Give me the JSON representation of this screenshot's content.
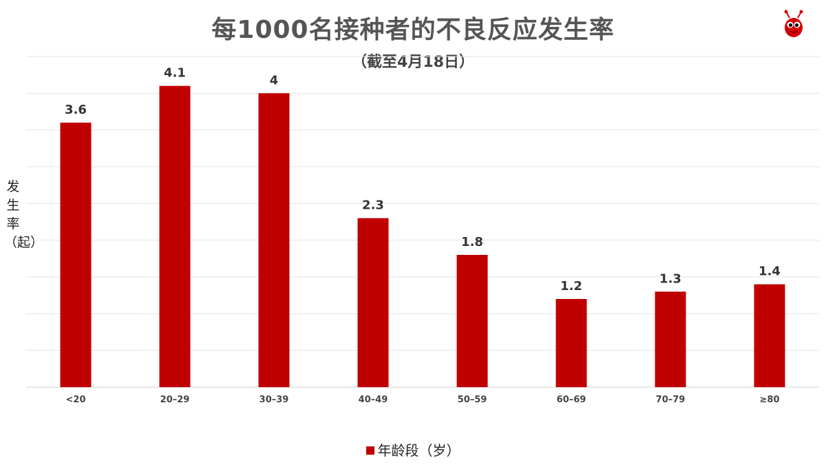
{
  "chart_data": {
    "type": "bar",
    "title": "每1000名接种者的不良反应发生率",
    "subtitle": "（截至4月18日）",
    "ylabel": "发生率（起）",
    "legend_label": "年龄段（岁）",
    "legend_position": "bottom",
    "categories": [
      "<20",
      "20–29",
      "30–39",
      "40–49",
      "50–59",
      "60–69",
      "70–79",
      "≥80"
    ],
    "series": [
      {
        "name": "年龄段（岁）",
        "values": [
          3.6,
          4.1,
          4,
          2.3,
          1.8,
          1.2,
          1.3,
          1.4
        ]
      }
    ],
    "value_labels": [
      "3.6",
      "4.1",
      "4",
      "2.3",
      "1.8",
      "1.2",
      "1.3",
      "1.4"
    ],
    "ylim": [
      0,
      4.5
    ],
    "grid_step": 0.5,
    "grid": true,
    "y_tick_labels_shown": false,
    "bar_color": "#c00000"
  },
  "logo": {
    "icon": "ant-mascot-icon"
  }
}
